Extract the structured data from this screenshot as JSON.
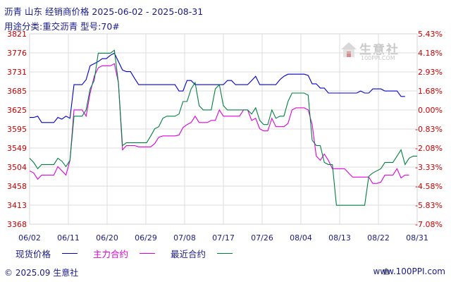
{
  "header": {
    "title": "沥青  山东  经销商价格  2025-06-02 - 2025-08-31",
    "subtitle": "用途分类:重交沥青  型号:70#"
  },
  "legend": {
    "items": [
      {
        "label": "现货价格",
        "color": "#0000cc"
      },
      {
        "label": "主力合约",
        "color": "#dd00dd"
      },
      {
        "label": "最近合约",
        "color": "#008040"
      }
    ]
  },
  "watermark": {
    "text": "生意社",
    "url": "100PPI.COM"
  },
  "footer": {
    "left": "© 2025.09 生意社",
    "right": "www.100PPI.com"
  },
  "chart_data": {
    "type": "line",
    "y_left_ticks": [
      "3821",
      "3776",
      "3731",
      "3685",
      "3625",
      "3595",
      "3549",
      "3504",
      "3458",
      "3413",
      "3368"
    ],
    "y_right_ticks": [
      "5.43%",
      "4.18%",
      "2.93%",
      "1.68%",
      "0.00%",
      "-0.83%",
      "-2.08%",
      "-3.33%",
      "-4.58%",
      "-5.83%",
      "-7.08%"
    ],
    "x_ticks": [
      "06/02",
      "06/11",
      "06/20",
      "06/29",
      "07/08",
      "07/17",
      "07/26",
      "08/04",
      "08/13",
      "08/22",
      "08/31"
    ],
    "ylim": [
      3368,
      3821
    ],
    "grid": true,
    "legend_position": "bottom",
    "series": [
      {
        "name": "现货价格",
        "color": "#0000cc",
        "points": [
          [
            0,
            3622
          ],
          [
            1,
            3622
          ],
          [
            2,
            3625
          ],
          [
            3,
            3610
          ],
          [
            4,
            3610
          ],
          [
            5,
            3610
          ],
          [
            6,
            3610
          ],
          [
            7,
            3622
          ],
          [
            8,
            3618
          ],
          [
            9,
            3625
          ],
          [
            10,
            3620
          ],
          [
            11,
            3700
          ],
          [
            12,
            3700
          ],
          [
            13,
            3700
          ],
          [
            14,
            3712
          ],
          [
            15,
            3745
          ],
          [
            16,
            3750
          ],
          [
            17,
            3755
          ],
          [
            18,
            3762
          ],
          [
            19,
            3762
          ],
          [
            20,
            3770
          ],
          [
            21,
            3775
          ],
          [
            22,
            3755
          ],
          [
            23,
            3735
          ],
          [
            24,
            3731
          ],
          [
            25,
            3731
          ],
          [
            26,
            3715
          ],
          [
            27,
            3700
          ],
          [
            28,
            3700
          ],
          [
            29,
            3700
          ],
          [
            30,
            3700
          ],
          [
            31,
            3700
          ],
          [
            32,
            3700
          ],
          [
            33,
            3700
          ],
          [
            34,
            3700
          ],
          [
            35,
            3700
          ],
          [
            36,
            3700
          ],
          [
            37,
            3685
          ],
          [
            38,
            3685
          ],
          [
            39,
            3710
          ],
          [
            40,
            3710
          ],
          [
            41,
            3700
          ],
          [
            42,
            3700
          ],
          [
            43,
            3700
          ],
          [
            44,
            3700
          ],
          [
            45,
            3700
          ],
          [
            46,
            3700
          ],
          [
            47,
            3700
          ],
          [
            48,
            3700
          ],
          [
            49,
            3710
          ],
          [
            50,
            3710
          ],
          [
            51,
            3700
          ],
          [
            52,
            3700
          ],
          [
            53,
            3700
          ],
          [
            54,
            3700
          ],
          [
            55,
            3710
          ],
          [
            56,
            3720
          ],
          [
            57,
            3700
          ],
          [
            58,
            3700
          ],
          [
            59,
            3700
          ],
          [
            60,
            3700
          ],
          [
            61,
            3700
          ],
          [
            62,
            3712
          ],
          [
            63,
            3720
          ],
          [
            64,
            3725
          ],
          [
            65,
            3725
          ],
          [
            66,
            3725
          ],
          [
            67,
            3725
          ],
          [
            68,
            3725
          ],
          [
            69,
            3722
          ],
          [
            70,
            3702
          ],
          [
            71,
            3702
          ],
          [
            72,
            3692
          ],
          [
            73,
            3692
          ],
          [
            74,
            3680
          ],
          [
            75,
            3680
          ],
          [
            76,
            3680
          ],
          [
            77,
            3680
          ],
          [
            78,
            3680
          ],
          [
            79,
            3680
          ],
          [
            80,
            3680
          ],
          [
            81,
            3680
          ],
          [
            82,
            3685
          ],
          [
            83,
            3680
          ],
          [
            84,
            3680
          ],
          [
            85,
            3690
          ],
          [
            86,
            3690
          ],
          [
            87,
            3690
          ],
          [
            88,
            3685
          ],
          [
            89,
            3685
          ],
          [
            90,
            3685
          ],
          [
            91,
            3685
          ],
          [
            92,
            3672
          ],
          [
            93,
            3672
          ]
        ]
      },
      {
        "name": "主力合约",
        "color": "#dd00dd",
        "points": [
          [
            0,
            3495
          ],
          [
            1,
            3490
          ],
          [
            2,
            3475
          ],
          [
            3,
            3485
          ],
          [
            4,
            3485
          ],
          [
            5,
            3485
          ],
          [
            6,
            3485
          ],
          [
            7,
            3505
          ],
          [
            8,
            3495
          ],
          [
            9,
            3485
          ],
          [
            10,
            3520
          ],
          [
            11,
            3640
          ],
          [
            12,
            3640
          ],
          [
            13,
            3640
          ],
          [
            14,
            3625
          ],
          [
            15,
            3680
          ],
          [
            16,
            3720
          ],
          [
            17,
            3740
          ],
          [
            18,
            3745
          ],
          [
            19,
            3745
          ],
          [
            20,
            3745
          ],
          [
            21,
            3750
          ],
          [
            22,
            3705
          ],
          [
            23,
            3545
          ],
          [
            24,
            3555
          ],
          [
            25,
            3555
          ],
          [
            26,
            3555
          ],
          [
            27,
            3552
          ],
          [
            28,
            3552
          ],
          [
            29,
            3552
          ],
          [
            30,
            3552
          ],
          [
            31,
            3560
          ],
          [
            32,
            3575
          ],
          [
            33,
            3578
          ],
          [
            34,
            3578
          ],
          [
            35,
            3578
          ],
          [
            36,
            3578
          ],
          [
            37,
            3580
          ],
          [
            38,
            3598
          ],
          [
            39,
            3605
          ],
          [
            40,
            3610
          ],
          [
            41,
            3625
          ],
          [
            42,
            3610
          ],
          [
            43,
            3610
          ],
          [
            44,
            3610
          ],
          [
            45,
            3615
          ],
          [
            46,
            3615
          ],
          [
            47,
            3640
          ],
          [
            48,
            3625
          ],
          [
            49,
            3625
          ],
          [
            50,
            3625
          ],
          [
            51,
            3625
          ],
          [
            52,
            3625
          ],
          [
            53,
            3640
          ],
          [
            54,
            3640
          ],
          [
            55,
            3615
          ],
          [
            56,
            3620
          ],
          [
            57,
            3595
          ],
          [
            58,
            3590
          ],
          [
            59,
            3590
          ],
          [
            60,
            3620
          ],
          [
            61,
            3600
          ],
          [
            62,
            3600
          ],
          [
            63,
            3600
          ],
          [
            64,
            3608
          ],
          [
            65,
            3640
          ],
          [
            66,
            3645
          ],
          [
            67,
            3645
          ],
          [
            68,
            3645
          ],
          [
            69,
            3640
          ],
          [
            70,
            3605
          ],
          [
            71,
            3530
          ],
          [
            72,
            3520
          ],
          [
            73,
            3535
          ],
          [
            74,
            3520
          ],
          [
            75,
            3500
          ],
          [
            76,
            3500
          ],
          [
            77,
            3500
          ],
          [
            78,
            3500
          ],
          [
            79,
            3490
          ],
          [
            80,
            3480
          ],
          [
            81,
            3480
          ],
          [
            82,
            3480
          ],
          [
            83,
            3480
          ],
          [
            84,
            3480
          ],
          [
            85,
            3465
          ],
          [
            86,
            3465
          ],
          [
            87,
            3468
          ],
          [
            88,
            3485
          ],
          [
            89,
            3485
          ],
          [
            90,
            3485
          ],
          [
            91,
            3500
          ],
          [
            92,
            3478
          ],
          [
            93,
            3485
          ],
          [
            94,
            3485
          ]
        ]
      },
      {
        "name": "最近合约",
        "color": "#008040",
        "points": [
          [
            0,
            3525
          ],
          [
            1,
            3515
          ],
          [
            2,
            3500
          ],
          [
            3,
            3510
          ],
          [
            4,
            3510
          ],
          [
            5,
            3510
          ],
          [
            6,
            3510
          ],
          [
            7,
            3525
          ],
          [
            8,
            3518
          ],
          [
            9,
            3505
          ],
          [
            10,
            3520
          ],
          [
            11,
            3625
          ],
          [
            12,
            3625
          ],
          [
            13,
            3625
          ],
          [
            14,
            3640
          ],
          [
            15,
            3690
          ],
          [
            16,
            3710
          ],
          [
            17,
            3775
          ],
          [
            18,
            3775
          ],
          [
            19,
            3775
          ],
          [
            20,
            3775
          ],
          [
            21,
            3782
          ],
          [
            22,
            3705
          ],
          [
            23,
            3555
          ],
          [
            24,
            3562
          ],
          [
            25,
            3562
          ],
          [
            26,
            3562
          ],
          [
            27,
            3562
          ],
          [
            28,
            3562
          ],
          [
            29,
            3562
          ],
          [
            30,
            3578
          ],
          [
            31,
            3595
          ],
          [
            32,
            3600
          ],
          [
            33,
            3620
          ],
          [
            34,
            3625
          ],
          [
            35,
            3625
          ],
          [
            36,
            3625
          ],
          [
            37,
            3630
          ],
          [
            38,
            3660
          ],
          [
            39,
            3660
          ],
          [
            40,
            3690
          ],
          [
            41,
            3705
          ],
          [
            42,
            3650
          ],
          [
            43,
            3640
          ],
          [
            44,
            3640
          ],
          [
            45,
            3640
          ],
          [
            46,
            3690
          ],
          [
            47,
            3700
          ],
          [
            48,
            3650
          ],
          [
            49,
            3640
          ],
          [
            50,
            3640
          ],
          [
            51,
            3640
          ],
          [
            52,
            3640
          ],
          [
            53,
            3640
          ],
          [
            54,
            3640
          ],
          [
            55,
            3630
          ],
          [
            56,
            3645
          ],
          [
            57,
            3615
          ],
          [
            58,
            3605
          ],
          [
            59,
            3605
          ],
          [
            60,
            3640
          ],
          [
            61,
            3620
          ],
          [
            62,
            3625
          ],
          [
            63,
            3625
          ],
          [
            64,
            3660
          ],
          [
            65,
            3680
          ],
          [
            66,
            3680
          ],
          [
            67,
            3680
          ],
          [
            68,
            3680
          ],
          [
            69,
            3675
          ],
          [
            70,
            3568
          ],
          [
            71,
            3555
          ],
          [
            72,
            3555
          ],
          [
            73,
            3515
          ],
          [
            74,
            3510
          ],
          [
            75,
            3510
          ],
          [
            76,
            3413
          ],
          [
            77,
            3413
          ],
          [
            78,
            3413
          ],
          [
            79,
            3413
          ],
          [
            80,
            3413
          ],
          [
            81,
            3413
          ],
          [
            82,
            3413
          ],
          [
            83,
            3413
          ],
          [
            84,
            3482
          ],
          [
            85,
            3490
          ],
          [
            86,
            3495
          ],
          [
            87,
            3500
          ],
          [
            88,
            3515
          ],
          [
            89,
            3515
          ],
          [
            90,
            3515
          ],
          [
            91,
            3530
          ],
          [
            92,
            3545
          ],
          [
            93,
            3510
          ],
          [
            94,
            3525
          ],
          [
            95,
            3530
          ],
          [
            96,
            3530
          ]
        ]
      }
    ]
  }
}
